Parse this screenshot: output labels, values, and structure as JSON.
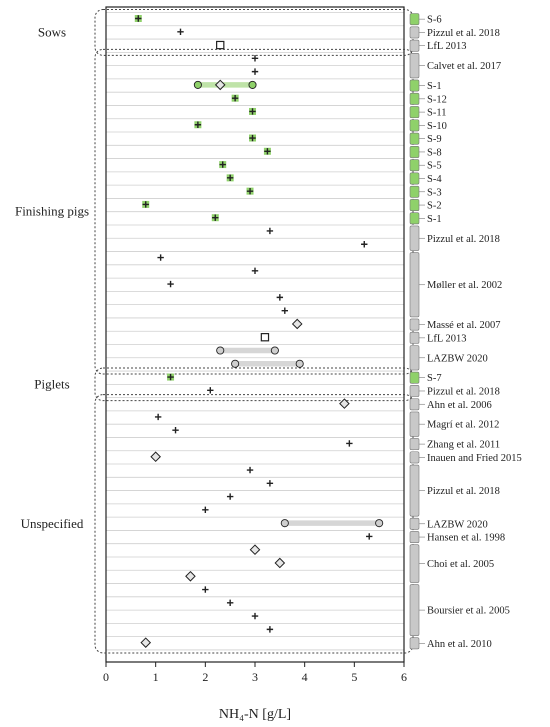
{
  "chart_data": {
    "type": "scatter",
    "title": "",
    "xlabel": "NH₄-N [g/L]",
    "ylabel": "",
    "xlim": [
      0,
      6
    ],
    "xticks": [
      "0",
      "1",
      "2",
      "3",
      "4",
      "5",
      "6"
    ],
    "grid": "horizontal",
    "legend": "none",
    "marker_types": [
      "plus",
      "square",
      "diamond",
      "circle"
    ],
    "colors": {
      "green_band": "#8fd16a",
      "range_bar_green": "#bfe3a8",
      "range_bar_grey": "#d6d6d6",
      "source_bar_grey": "#c8c8c8",
      "grid": "#cfcfcf",
      "marker_edge": "#222222",
      "circle_fill_grey": "#cfcfcf",
      "diamond_fill": "#e6e6e6",
      "square_fill": "#ffffff"
    },
    "groups": [
      {
        "name": "Sows",
        "first_row": 0,
        "last_row": 2
      },
      {
        "name": "Finishing pigs",
        "first_row": 3,
        "last_row": 26
      },
      {
        "name": "Piglets",
        "first_row": 27,
        "last_row": 28
      },
      {
        "name": "Unspecified",
        "first_row": 29,
        "last_row": 47
      }
    ],
    "sources": [
      {
        "label": "S-6",
        "first_row": 0,
        "last_row": 0,
        "color": "green"
      },
      {
        "label": "Pizzul et al. 2018",
        "first_row": 1,
        "last_row": 1,
        "color": "grey"
      },
      {
        "label": "LfL 2013",
        "first_row": 2,
        "last_row": 2,
        "color": "grey"
      },
      {
        "label": "Calvet et al. 2017",
        "first_row": 3,
        "last_row": 4,
        "color": "grey"
      },
      {
        "label": "S-1",
        "first_row": 5,
        "last_row": 5,
        "color": "green"
      },
      {
        "label": "S-12",
        "first_row": 6,
        "last_row": 6,
        "color": "green"
      },
      {
        "label": "S-11",
        "first_row": 7,
        "last_row": 7,
        "color": "green"
      },
      {
        "label": "S-10",
        "first_row": 8,
        "last_row": 8,
        "color": "green"
      },
      {
        "label": "S-9",
        "first_row": 9,
        "last_row": 9,
        "color": "green"
      },
      {
        "label": "S-8",
        "first_row": 10,
        "last_row": 10,
        "color": "green"
      },
      {
        "label": "S-5",
        "first_row": 11,
        "last_row": 11,
        "color": "green"
      },
      {
        "label": "S-4",
        "first_row": 12,
        "last_row": 12,
        "color": "green"
      },
      {
        "label": "S-3",
        "first_row": 13,
        "last_row": 13,
        "color": "green"
      },
      {
        "label": "S-2",
        "first_row": 14,
        "last_row": 14,
        "color": "green"
      },
      {
        "label": "S-1",
        "first_row": 15,
        "last_row": 15,
        "color": "green"
      },
      {
        "label": "Pizzul et al. 2018",
        "first_row": 16,
        "last_row": 17,
        "color": "grey"
      },
      {
        "label": "Møller et al. 2002",
        "first_row": 18,
        "last_row": 22,
        "color": "grey"
      },
      {
        "label": "Massé et al. 2007",
        "first_row": 23,
        "last_row": 23,
        "color": "grey"
      },
      {
        "label": "LfL 2013",
        "first_row": 24,
        "last_row": 24,
        "color": "grey"
      },
      {
        "label": "LAZBW 2020",
        "first_row": 25,
        "last_row": 26,
        "color": "grey"
      },
      {
        "label": "S-7",
        "first_row": 27,
        "last_row": 27,
        "color": "green"
      },
      {
        "label": "Pizzul et al. 2018",
        "first_row": 28,
        "last_row": 28,
        "color": "grey"
      },
      {
        "label": "Ahn et al. 2006",
        "first_row": 29,
        "last_row": 29,
        "color": "grey"
      },
      {
        "label": "Magrí et al. 2012",
        "first_row": 30,
        "last_row": 31,
        "color": "grey"
      },
      {
        "label": "Zhang et al. 2011",
        "first_row": 32,
        "last_row": 32,
        "color": "grey"
      },
      {
        "label": "Inauen and Fried 2015",
        "first_row": 33,
        "last_row": 33,
        "color": "grey"
      },
      {
        "label": "Pizzul et al. 2018",
        "first_row": 34,
        "last_row": 37,
        "color": "grey"
      },
      {
        "label": "LAZBW 2020",
        "first_row": 38,
        "last_row": 38,
        "color": "grey"
      },
      {
        "label": "Hansen et al. 1998",
        "first_row": 39,
        "last_row": 39,
        "color": "grey"
      },
      {
        "label": "Choi et al. 2005",
        "first_row": 40,
        "last_row": 42,
        "color": "grey"
      },
      {
        "label": "Boursier et al. 2005",
        "first_row": 43,
        "last_row": 46,
        "color": "grey"
      },
      {
        "label": "Ahn et al. 2010",
        "first_row": 47,
        "last_row": 47,
        "color": "grey"
      }
    ],
    "rows": [
      {
        "marker": "plus",
        "x": 0.65,
        "green": true
      },
      {
        "marker": "plus",
        "x": 1.5
      },
      {
        "marker": "square",
        "x": 2.3
      },
      {
        "marker": "plus",
        "x": 3.0
      },
      {
        "marker": "plus",
        "x": 3.0
      },
      {
        "marker": "diamond",
        "x": 2.3,
        "range": [
          1.85,
          2.95
        ],
        "range_color": "green"
      },
      {
        "marker": "plus",
        "x": 2.6,
        "green": true
      },
      {
        "marker": "plus",
        "x": 2.95,
        "green": true
      },
      {
        "marker": "plus",
        "x": 1.85,
        "green": true
      },
      {
        "marker": "plus",
        "x": 2.95,
        "green": true
      },
      {
        "marker": "plus",
        "x": 3.25,
        "green": true
      },
      {
        "marker": "plus",
        "x": 2.35,
        "green": true
      },
      {
        "marker": "plus",
        "x": 2.5,
        "green": true
      },
      {
        "marker": "plus",
        "x": 2.9,
        "green": true
      },
      {
        "marker": "plus",
        "x": 0.8,
        "green": true
      },
      {
        "marker": "plus",
        "x": 2.2,
        "green": true
      },
      {
        "marker": "plus",
        "x": 3.3
      },
      {
        "marker": "plus",
        "x": 5.2
      },
      {
        "marker": "plus",
        "x": 1.1
      },
      {
        "marker": "plus",
        "x": 3.0
      },
      {
        "marker": "plus",
        "x": 1.3
      },
      {
        "marker": "plus",
        "x": 3.5
      },
      {
        "marker": "plus",
        "x": 3.6
      },
      {
        "marker": "diamond",
        "x": 3.85
      },
      {
        "marker": "square",
        "x": 3.2
      },
      {
        "range": [
          2.3,
          3.4
        ],
        "range_color": "grey"
      },
      {
        "range": [
          2.6,
          3.9
        ],
        "range_color": "grey"
      },
      {
        "marker": "plus",
        "x": 1.3,
        "green": true
      },
      {
        "marker": "plus",
        "x": 2.1
      },
      {
        "marker": "diamond",
        "x": 4.8
      },
      {
        "marker": "plus",
        "x": 1.05
      },
      {
        "marker": "plus",
        "x": 1.4
      },
      {
        "marker": "plus",
        "x": 4.9
      },
      {
        "marker": "diamond",
        "x": 1.0
      },
      {
        "marker": "plus",
        "x": 2.9
      },
      {
        "marker": "plus",
        "x": 3.3
      },
      {
        "marker": "plus",
        "x": 2.5
      },
      {
        "marker": "plus",
        "x": 2.0
      },
      {
        "range": [
          3.6,
          5.5
        ],
        "range_color": "grey"
      },
      {
        "marker": "plus",
        "x": 5.3
      },
      {
        "marker": "diamond",
        "x": 3.0
      },
      {
        "marker": "diamond",
        "x": 3.5
      },
      {
        "marker": "diamond",
        "x": 1.7
      },
      {
        "marker": "plus",
        "x": 2.0
      },
      {
        "marker": "plus",
        "x": 2.5
      },
      {
        "marker": "plus",
        "x": 3.0
      },
      {
        "marker": "plus",
        "x": 3.3
      },
      {
        "marker": "diamond",
        "x": 0.8
      }
    ]
  }
}
